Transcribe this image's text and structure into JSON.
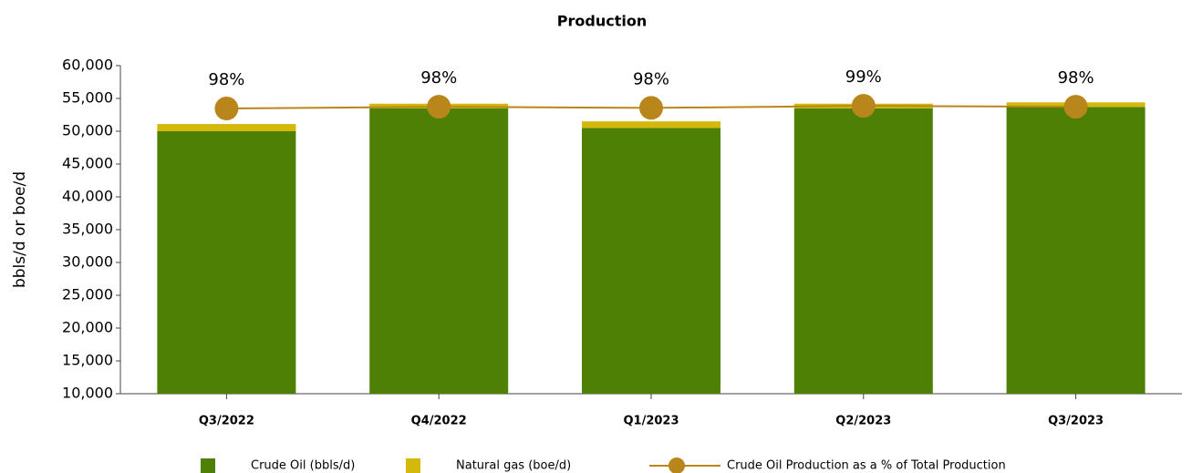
{
  "chart_data": {
    "type": "bar",
    "title": "Production",
    "y_label": "bbls/d or boe/d",
    "categories": [
      "Q3/2022",
      "Q4/2022",
      "Q1/2023",
      "Q2/2023",
      "Q3/2023"
    ],
    "series": [
      {
        "name": "Crude Oil (bbls/d)",
        "type": "bar",
        "color": "#4d8005",
        "values": [
          50000,
          53500,
          50500,
          53500,
          53700
        ]
      },
      {
        "name": "Natural gas (boe/d)",
        "type": "bar",
        "color": "#d4b80c",
        "values": [
          1100,
          700,
          1000,
          700,
          700
        ]
      },
      {
        "name": "Crude Oil Production as a % of Total Production",
        "type": "line",
        "axis": "y2",
        "color": "#b8861b",
        "values": [
          97.8,
          98.4,
          98.0,
          98.7,
          98.4
        ],
        "value_labels": [
          "98%",
          "98%",
          "98%",
          "99%",
          "98%"
        ]
      }
    ],
    "stacked": true,
    "ylim": [
      10000,
      60000
    ],
    "yticks": [
      {
        "value": 10000,
        "label": "10,000"
      },
      {
        "value": 15000,
        "label": "15,000"
      },
      {
        "value": 20000,
        "label": "20,000"
      },
      {
        "value": 25000,
        "label": "25,000"
      },
      {
        "value": 30000,
        "label": "30,000"
      },
      {
        "value": 35000,
        "label": "35,000"
      },
      {
        "value": 40000,
        "label": "40,000"
      },
      {
        "value": 45000,
        "label": "45,000"
      },
      {
        "value": 50000,
        "label": "50,000"
      },
      {
        "value": 55000,
        "label": "55,000"
      },
      {
        "value": 60000,
        "label": "60,000"
      }
    ],
    "y2lim": [
      0,
      112.5
    ],
    "legend": "bottom"
  }
}
